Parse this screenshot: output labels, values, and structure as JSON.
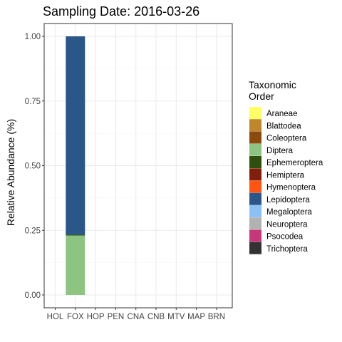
{
  "chart_data": {
    "type": "bar",
    "stacked": true,
    "title": "Sampling Date: 2016-03-26",
    "xlabel": "",
    "ylabel": "Relative Abundance (%)",
    "ylim": [
      0,
      1
    ],
    "yticks": [
      "0.00",
      "0.25",
      "0.50",
      "0.75",
      "1.00"
    ],
    "ytick_values": [
      0,
      0.25,
      0.5,
      0.75,
      1.0
    ],
    "categories": [
      "HOL",
      "FOX",
      "HOP",
      "PEN",
      "CNA",
      "CNB",
      "MTV",
      "MAP",
      "BRN"
    ],
    "grid": true,
    "legend": {
      "title_lines": [
        "Taxonomic",
        "Order"
      ],
      "placement": "right"
    },
    "series": [
      {
        "name": "Araneae",
        "color": "#FFFF66",
        "values": [
          0,
          0,
          0,
          0,
          0,
          0,
          0,
          0,
          0
        ]
      },
      {
        "name": "Blattodea",
        "color": "#C0862B",
        "values": [
          0,
          0,
          0,
          0,
          0,
          0,
          0,
          0,
          0
        ]
      },
      {
        "name": "Coleoptera",
        "color": "#8B4A0B",
        "values": [
          0,
          0,
          0,
          0,
          0,
          0,
          0,
          0,
          0
        ]
      },
      {
        "name": "Diptera",
        "color": "#8DC481",
        "values": [
          0,
          0.23,
          0,
          0,
          0,
          0,
          0,
          0,
          0
        ]
      },
      {
        "name": "Ephemeroptera",
        "color": "#2E4F0E",
        "values": [
          0,
          0.003,
          0,
          0,
          0,
          0,
          0,
          0,
          0
        ]
      },
      {
        "name": "Hemiptera",
        "color": "#7F1F0C",
        "values": [
          0,
          0,
          0,
          0,
          0,
          0,
          0,
          0,
          0
        ]
      },
      {
        "name": "Hymenoptera",
        "color": "#FF5412",
        "values": [
          0,
          0,
          0,
          0,
          0,
          0,
          0,
          0,
          0
        ]
      },
      {
        "name": "Lepidoptera",
        "color": "#2A5688",
        "values": [
          0,
          0.767,
          0,
          0,
          0,
          0,
          0,
          0,
          0
        ]
      },
      {
        "name": "Megaloptera",
        "color": "#8CC0F5",
        "values": [
          0,
          0,
          0,
          0,
          0,
          0,
          0,
          0,
          0
        ]
      },
      {
        "name": "Neuroptera",
        "color": "#B2B2B2",
        "values": [
          0,
          0,
          0,
          0,
          0,
          0,
          0,
          0,
          0
        ]
      },
      {
        "name": "Psocodea",
        "color": "#C7377C",
        "values": [
          0,
          0,
          0,
          0,
          0,
          0,
          0,
          0,
          0
        ]
      },
      {
        "name": "Trichoptera",
        "color": "#333333",
        "values": [
          0,
          0,
          0,
          0,
          0,
          0,
          0,
          0,
          0
        ]
      }
    ]
  }
}
